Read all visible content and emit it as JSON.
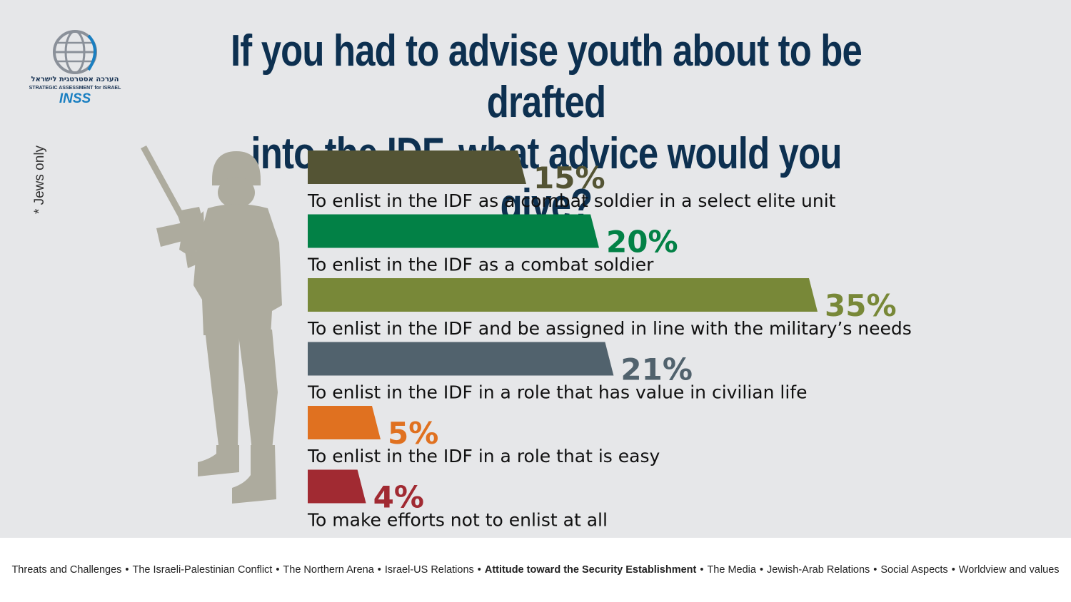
{
  "header": {
    "title_line1": "If you had to advise youth about to be drafted",
    "title_line2": "into the IDF, what advice would you give?",
    "note": "* Jews only"
  },
  "logo": {
    "hebrew": "הערכה אסטרטגית לישראל",
    "english": "STRATEGIC ASSESSMENT for ISRAEL",
    "brand": "INSS"
  },
  "chart_data": {
    "type": "bar",
    "orientation": "horizontal",
    "categories": [
      "To enlist in the IDF as a combat soldier in a select elite unit",
      "To enlist in the IDF as a combat soldier",
      "To enlist in the IDF and be assigned in line with the military’s needs",
      "To enlist in the IDF in a role that has value in civilian life",
      "To enlist in the IDF in a role that is easy",
      "To make efforts not to enlist at all"
    ],
    "values": [
      15,
      20,
      35,
      21,
      5,
      4
    ],
    "value_labels": [
      "15%",
      "20%",
      "35%",
      "21%",
      "5%",
      "4%"
    ],
    "colors": [
      "#545434",
      "#028146",
      "#788838",
      "#51626d",
      "#e07120",
      "#a12a32"
    ],
    "unit": "%",
    "xlim": [
      0,
      35
    ],
    "grid": false,
    "legend": "none"
  },
  "footer": {
    "items": [
      "Threats and Challenges",
      "The Israeli-Palestinian Conflict",
      "The Northern  Arena",
      "Israel-US Relations",
      "Attitude toward the Security Establishment",
      "The Media",
      "Jewish-Arab Relations",
      "Social Aspects",
      "Worldview and values"
    ],
    "active_index": 4,
    "separator": "•"
  }
}
